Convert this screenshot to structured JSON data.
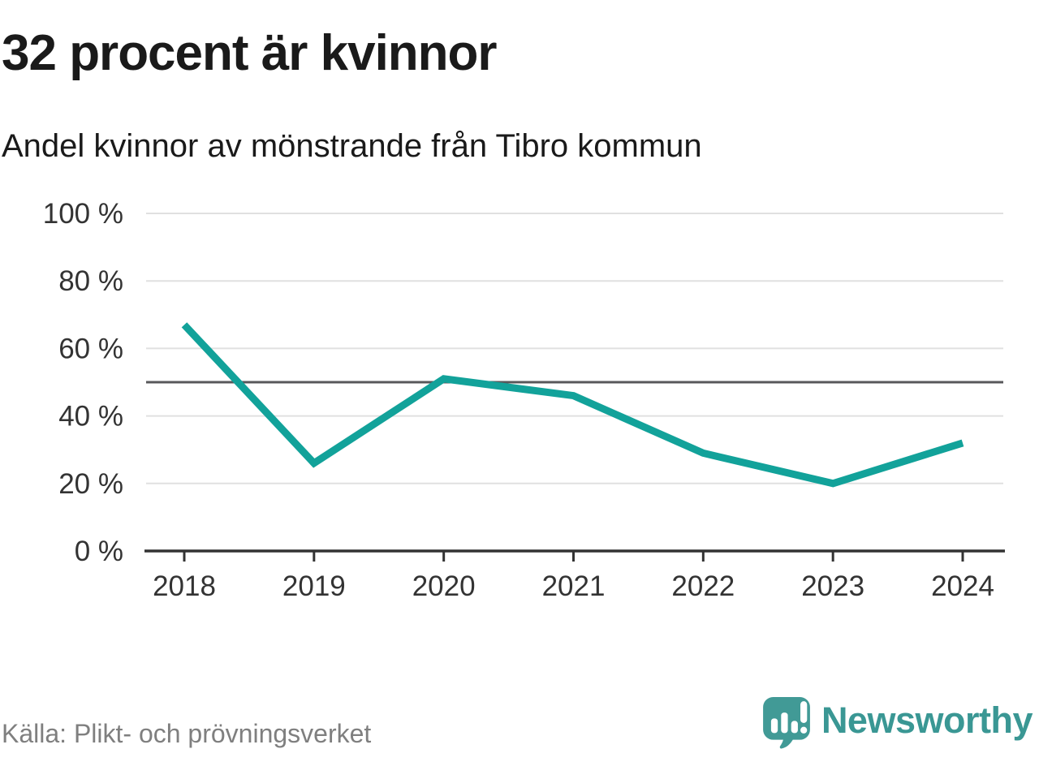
{
  "header": {
    "title": "32 procent är kvinnor",
    "subtitle": "Andel kvinnor av mönstrande från Tibro kommun"
  },
  "chart_data": {
    "type": "line",
    "title": "32 procent är kvinnor",
    "subtitle": "Andel kvinnor av mönstrande från Tibro kommun",
    "categories": [
      "2018",
      "2019",
      "2020",
      "2021",
      "2022",
      "2023",
      "2024"
    ],
    "values": [
      67,
      26,
      51,
      46,
      29,
      20,
      32
    ],
    "unit": "%",
    "ylim": [
      0,
      100
    ],
    "yticks": [
      0,
      20,
      40,
      60,
      80,
      100
    ],
    "ytick_suffix": " %",
    "reference_line": 50,
    "grid": true,
    "legend": false,
    "line_color": "#12a29a",
    "grid_color": "#e0e0e0",
    "axis_color": "#333333",
    "reference_color": "#58585b"
  },
  "footer": {
    "source": "Källa: Plikt- och prövningsverket",
    "brand": "Newsworthy"
  },
  "brand_colors": {
    "mark_teal": "#419a96",
    "text_teal": "#3a9794"
  }
}
